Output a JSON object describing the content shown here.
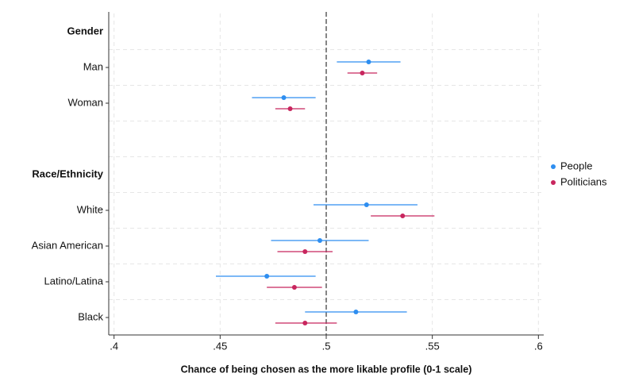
{
  "chart_data": {
    "type": "coefplot",
    "xlabel": "Chance of being chosen as the more likable profile (0-1 scale)",
    "categories": [
      "Gender",
      "Man",
      "Woman",
      null,
      "Race/Ethnicity",
      "White",
      "Asian American",
      "Latino/Latina",
      "Black"
    ],
    "series": [
      {
        "name": "People",
        "color": "#2e8ef0",
        "values": [
          null,
          0.52,
          0.48,
          null,
          null,
          0.519,
          0.497,
          0.472,
          0.514
        ],
        "lower": [
          null,
          0.505,
          0.465,
          null,
          null,
          0.494,
          0.474,
          0.448,
          0.49
        ],
        "upper": [
          null,
          0.535,
          0.495,
          null,
          null,
          0.543,
          0.52,
          0.495,
          0.538
        ]
      },
      {
        "name": "Politicians",
        "color": "#c8265e",
        "values": [
          null,
          0.517,
          0.483,
          null,
          null,
          0.536,
          0.49,
          0.485,
          0.49
        ],
        "lower": [
          null,
          0.51,
          0.476,
          null,
          null,
          0.521,
          0.477,
          0.472,
          0.476
        ],
        "upper": [
          null,
          0.524,
          0.49,
          null,
          null,
          0.551,
          0.503,
          0.498,
          0.505
        ]
      }
    ],
    "xlim": [
      0.3975,
      0.6025
    ],
    "xticks": [
      {
        "value": 0.4,
        "label": ".4"
      },
      {
        "value": 0.45,
        "label": ".45"
      },
      {
        "value": 0.5,
        "label": ".5"
      },
      {
        "value": 0.55,
        "label": ".55"
      },
      {
        "value": 0.6,
        "label": ".6"
      }
    ],
    "reference_line": 0.5,
    "grid": true,
    "legend": "right"
  }
}
